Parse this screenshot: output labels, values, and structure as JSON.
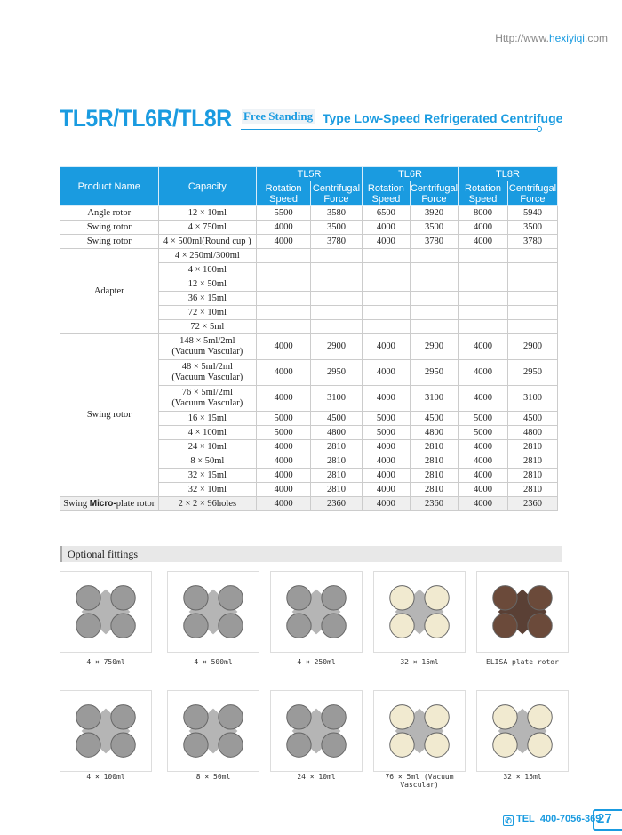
{
  "header": {
    "url_prefix": "Http://www.",
    "url_domain": "hexiyiqi",
    "url_suffix": ".com"
  },
  "title": {
    "models": "TL5R/TL6R/TL8R",
    "free": "Free Standing",
    "rest": "Type Low-Speed Refrigerated Centrifuge"
  },
  "table": {
    "col_product": "Product Name",
    "col_capacity": "Capacity",
    "models": [
      "TL5R",
      "TL6R",
      "TL8R"
    ],
    "sub": [
      "Rotation Speed",
      "Centrifugal Force"
    ],
    "rows": [
      {
        "name": "Angle rotor",
        "cap": "12 × 10ml",
        "v": [
          "5500",
          "3580",
          "6500",
          "3920",
          "8000",
          "5940"
        ]
      },
      {
        "name": "Swing rotor",
        "cap": "4 × 750ml",
        "v": [
          "4000",
          "3500",
          "4000",
          "3500",
          "4000",
          "3500"
        ]
      },
      {
        "name": "Swing rotor",
        "cap": "4 × 500ml(Round cup )",
        "v": [
          "4000",
          "3780",
          "4000",
          "3780",
          "4000",
          "3780"
        ]
      }
    ],
    "adapter": {
      "name": "Adapter",
      "caps": [
        "4 × 250ml/300ml",
        "4 × 100ml",
        "12 × 50ml",
        "36 × 15ml",
        "72 × 10ml",
        "72 × 5ml"
      ]
    },
    "swing": {
      "name": "Swing rotor",
      "rows": [
        {
          "cap": "148 × 5ml/2ml",
          "cap2": "(Vacuum Vascular)",
          "v": [
            "4000",
            "2900",
            "4000",
            "2900",
            "4000",
            "2900"
          ]
        },
        {
          "cap": "48 × 5ml/2ml",
          "cap2": "(Vacuum Vascular)",
          "v": [
            "4000",
            "2950",
            "4000",
            "2950",
            "4000",
            "2950"
          ]
        },
        {
          "cap": "76 × 5ml/2ml",
          "cap2": "(Vacuum Vascular)",
          "v": [
            "4000",
            "3100",
            "4000",
            "3100",
            "4000",
            "3100"
          ]
        },
        {
          "cap": "16 × 15ml",
          "v": [
            "5000",
            "4500",
            "5000",
            "4500",
            "5000",
            "4500"
          ]
        },
        {
          "cap": "4 × 100ml",
          "v": [
            "5000",
            "4800",
            "5000",
            "4800",
            "5000",
            "4800"
          ]
        },
        {
          "cap": "24 × 10ml",
          "v": [
            "4000",
            "2810",
            "4000",
            "2810",
            "4000",
            "2810"
          ]
        },
        {
          "cap": "8 × 50ml",
          "v": [
            "4000",
            "2810",
            "4000",
            "2810",
            "4000",
            "2810"
          ]
        },
        {
          "cap": "32 × 15ml",
          "v": [
            "4000",
            "2810",
            "4000",
            "2810",
            "4000",
            "2810"
          ]
        },
        {
          "cap": "32 × 10ml",
          "v": [
            "4000",
            "2810",
            "4000",
            "2810",
            "4000",
            "2810"
          ]
        }
      ]
    },
    "micro": {
      "a": "Swing",
      "b": "Micro-",
      "c": "plate rotor",
      "cap": "2 × 2 × 96holes",
      "v": [
        "4000",
        "2360",
        "4000",
        "2360",
        "4000",
        "2360"
      ]
    }
  },
  "optional": {
    "title": "Optional fittings",
    "items": [
      "4 × 750ml",
      "4 × 500ml",
      "4 × 250ml",
      "32 × 15ml",
      "ELISA plate rotor",
      "4 × 100ml",
      "8 × 50ml",
      "24 × 10ml",
      "76 × 5ml (Vacuum Vascular)",
      "32 × 15ml"
    ]
  },
  "footer": {
    "tel_label": "TEL",
    "tel": "400-7056-369",
    "page": "27"
  },
  "colors": {
    "accent": "#1a9be0"
  }
}
